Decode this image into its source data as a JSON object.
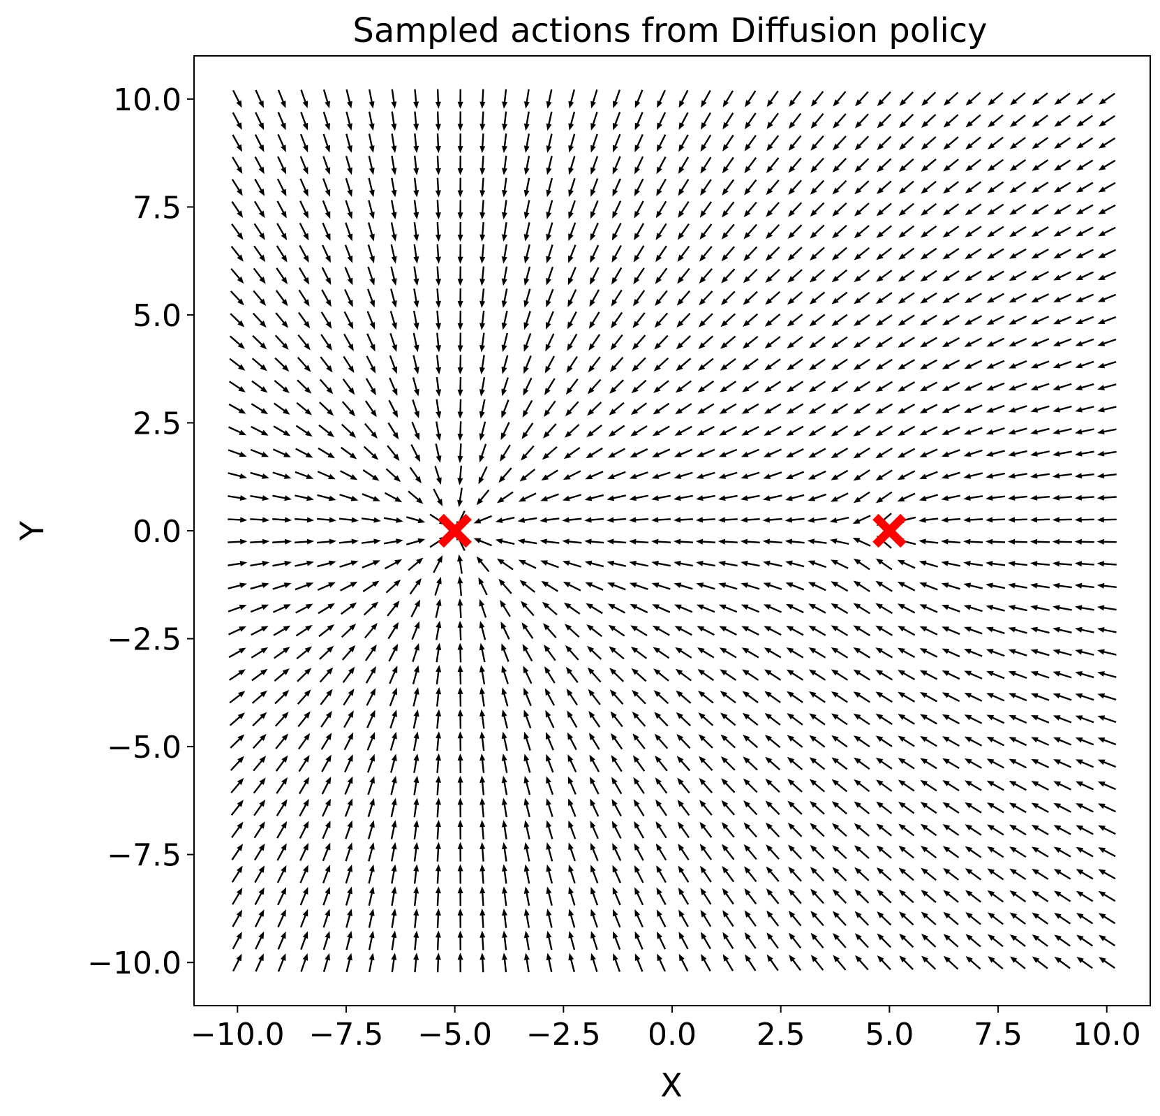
{
  "chart_data": {
    "type": "quiver",
    "title": "Sampled actions from Diffusion policy",
    "xlabel": "X",
    "ylabel": "Y",
    "xlim": [
      -11,
      11
    ],
    "ylim": [
      -11,
      11
    ],
    "xticks": [
      -10.0,
      -7.5,
      -5.0,
      -2.5,
      0.0,
      2.5,
      5.0,
      7.5,
      10.0
    ],
    "xtick_labels": [
      "−10.0",
      "−7.5",
      "−5.0",
      "−2.5",
      "0.0",
      "2.5",
      "5.0",
      "7.5",
      "10.0"
    ],
    "yticks": [
      -10.0,
      -7.5,
      -5.0,
      -2.5,
      0.0,
      2.5,
      5.0,
      7.5,
      10.0
    ],
    "ytick_labels": [
      "−10.0",
      "−7.5",
      "−5.0",
      "−2.5",
      "0.0",
      "2.5",
      "5.0",
      "7.5",
      "10.0"
    ],
    "grid": false,
    "arrow_color": "#000000",
    "field": {
      "x_range": [
        -10,
        10
      ],
      "y_range": [
        -10,
        10
      ],
      "points_per_axis": 40,
      "description_of_direction": "unit vectors pointing toward the nearer of the two markers, weighted toward (-5, 0)"
    },
    "markers": [
      {
        "x": -5,
        "y": 0,
        "symbol": "x",
        "color": "#ff0000"
      },
      {
        "x": 5,
        "y": 0,
        "symbol": "x",
        "color": "#ff0000"
      }
    ]
  }
}
